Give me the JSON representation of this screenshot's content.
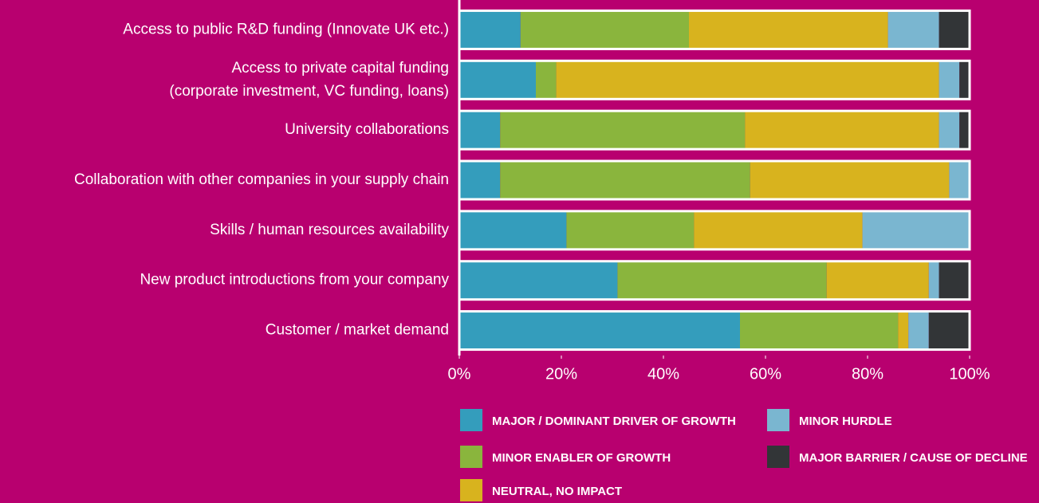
{
  "chart_data": {
    "type": "stacked-bar-horizontal",
    "categories": [
      "Access to public R&D funding (Innovate UK etc.)",
      "Access to private capital funding\n(corporate investment, VC funding, loans)",
      "University collaborations",
      "Collaboration with other companies in your supply chain",
      "Skills / human resources availability",
      "New product introductions from your company",
      "Customer / market demand"
    ],
    "series": [
      {
        "name": "MAJOR / DOMINANT DRIVER OF GROWTH",
        "color": "#349dbc",
        "values": [
          12,
          15,
          8,
          8,
          21,
          31,
          55
        ]
      },
      {
        "name": "MINOR ENABLER OF GROWTH",
        "color": "#8ab53d",
        "values": [
          33,
          4,
          48,
          49,
          25,
          41,
          31
        ]
      },
      {
        "name": "NEUTRAL, NO IMPACT",
        "color": "#d8b31e",
        "values": [
          39,
          75,
          38,
          39,
          33,
          20,
          2
        ]
      },
      {
        "name": "MINOR HURDLE",
        "color": "#7ab6d0",
        "values": [
          10,
          4,
          4,
          4,
          21,
          2,
          4
        ]
      },
      {
        "name": "MAJOR BARRIER / CAUSE OF DECLINE",
        "color": "#323537",
        "values": [
          6,
          2,
          2,
          0,
          0,
          6,
          8
        ]
      }
    ],
    "xlim": [
      0,
      100
    ],
    "xticks": [
      {
        "value": 0,
        "label": "0%"
      },
      {
        "value": 20,
        "label": "20%"
      },
      {
        "value": 40,
        "label": "40%"
      },
      {
        "value": 60,
        "label": "60%"
      },
      {
        "value": 80,
        "label": "80%"
      },
      {
        "value": 100,
        "label": "100%"
      }
    ]
  }
}
